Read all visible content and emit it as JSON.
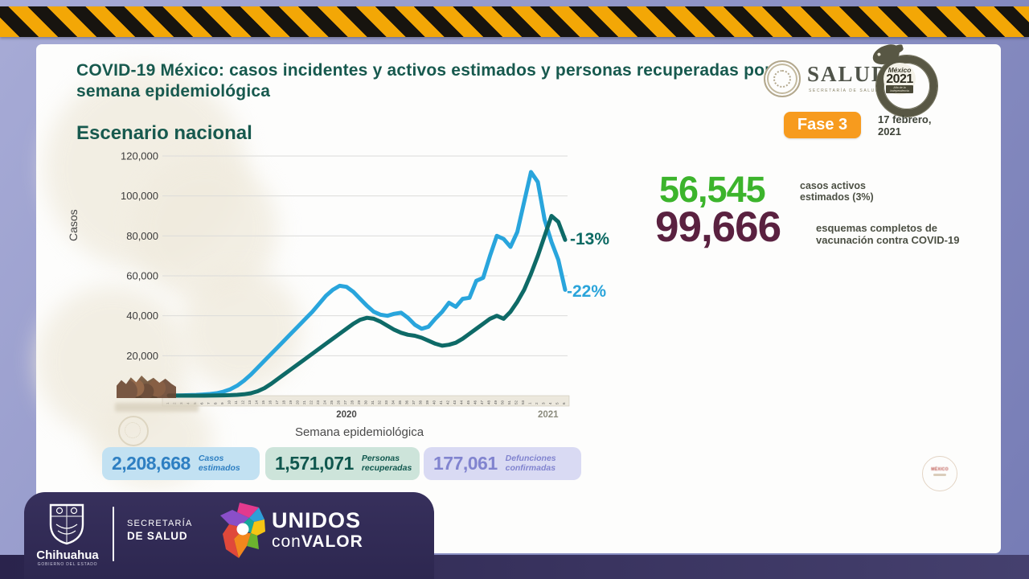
{
  "header": {
    "title": "COVID-19 México: casos incidentes y activos estimados y personas recuperadas por semana epidemiológica",
    "subtitle": "Escenario nacional",
    "salud_logo": {
      "word": "SALUD",
      "sub": "SECRETARÍA DE SALUD"
    },
    "mexico2021_logo": {
      "line1": "México",
      "line2": "2021",
      "line3": "Año de la Independencia"
    },
    "phase_badge": "Fase 3",
    "date": "17 febrero, 2021"
  },
  "colors": {
    "title_green": "#17594e",
    "hazard_yellow": "#f3a706",
    "badge_orange": "#f79b1e",
    "active_cases_green": "#3cb42c",
    "vaccination_maroon": "#5a2140",
    "line_blue": "#29a5dc",
    "line_teal": "#0e6a67",
    "footer_purple": "#312a54"
  },
  "chart_data": {
    "type": "line",
    "title": "Escenario nacional",
    "xlabel": "Semana epidemiológica",
    "ylabel": "Casos",
    "ylim": [
      0,
      120000
    ],
    "grid": true,
    "legend_position": "none",
    "yticks": [
      20000,
      40000,
      60000,
      80000,
      100000,
      120000
    ],
    "ytick_labels": [
      "20,000",
      "40,000",
      "60,000",
      "80,000",
      "100,000",
      "120,000"
    ],
    "x_year_labels": [
      "2020",
      "2021"
    ],
    "categories": [
      "1",
      "2",
      "3",
      "4",
      "5",
      "6",
      "7",
      "8",
      "9",
      "10",
      "11",
      "12",
      "13",
      "14",
      "15",
      "16",
      "17",
      "18",
      "19",
      "20",
      "21",
      "22",
      "23",
      "24",
      "25",
      "26",
      "27",
      "28",
      "29",
      "30",
      "31",
      "32",
      "33",
      "34",
      "35",
      "36",
      "37",
      "38",
      "39",
      "40",
      "41",
      "42",
      "43",
      "44",
      "45",
      "46",
      "47",
      "48",
      "49",
      "50",
      "51",
      "52",
      "53",
      "1",
      "2",
      "3",
      "4",
      "5",
      "6"
    ],
    "series": [
      {
        "name": "Casos estimados",
        "color": "#29a5dc",
        "values": [
          80,
          120,
          180,
          260,
          380,
          550,
          800,
          1200,
          2000,
          3200,
          5000,
          7500,
          10500,
          14000,
          17500,
          21000,
          24500,
          28000,
          31500,
          35000,
          38500,
          42000,
          46000,
          50000,
          53000,
          55000,
          54500,
          52000,
          48500,
          45000,
          42000,
          40500,
          40000,
          41000,
          41500,
          39000,
          35500,
          33500,
          34500,
          38500,
          42000,
          46500,
          44500,
          48500,
          49000,
          57500,
          59000,
          70000,
          80000,
          78500,
          74500,
          82000,
          97000,
          112000,
          107000,
          88000,
          77000,
          68000,
          53000
        ]
      },
      {
        "name": "Personas recuperadas",
        "color": "#0e6a67",
        "values": [
          0,
          0,
          0,
          0,
          0,
          0,
          50,
          100,
          150,
          250,
          400,
          700,
          1200,
          2200,
          3800,
          6000,
          8500,
          11000,
          13500,
          16000,
          18500,
          21000,
          23500,
          26000,
          28500,
          31000,
          33500,
          36000,
          38000,
          39000,
          38500,
          37000,
          35000,
          33000,
          31500,
          30500,
          30000,
          29000,
          27500,
          26000,
          25000,
          25500,
          26500,
          28500,
          31000,
          33500,
          36000,
          38500,
          40000,
          38500,
          42000,
          47000,
          53000,
          61000,
          70000,
          80000,
          90000,
          87000,
          78000
        ]
      }
    ],
    "annotations": [
      {
        "text": "-13%",
        "series": "Personas recuperadas",
        "color": "#0e6a67"
      },
      {
        "text": "-22%",
        "series": "Casos estimados",
        "color": "#29a5dc"
      }
    ]
  },
  "highlights": [
    {
      "value": "56,545",
      "label": "casos activos estimados (3%)",
      "color": "#3cb42c"
    },
    {
      "value": "99,666",
      "label": "esquemas completos de vacunación contra COVID-19",
      "color": "#5a2140"
    }
  ],
  "summary_pills": [
    {
      "value": "2,208,668",
      "label": "Casos estimados",
      "bg": "#c2e1f2",
      "fg": "#2e7fc2"
    },
    {
      "value": "1,571,071",
      "label": "Personas recuperadas",
      "bg": "#cde4da",
      "fg": "#10574e"
    },
    {
      "value": "177,061",
      "label": "Defunciones confirmadas",
      "bg": "#d9daf3",
      "fg": "#8184cf"
    }
  ],
  "card_seal": {
    "text": "MÉXICO"
  },
  "footer": {
    "chihuahua": {
      "name": "Chihuahua",
      "sub": "GOBIERNO DEL ESTADO"
    },
    "secretaria": {
      "line1": "SECRETARÍA",
      "line2": "DE SALUD"
    },
    "unidos": {
      "line1": "UNIDOS",
      "con": "con",
      "valor": "VALOR"
    }
  }
}
